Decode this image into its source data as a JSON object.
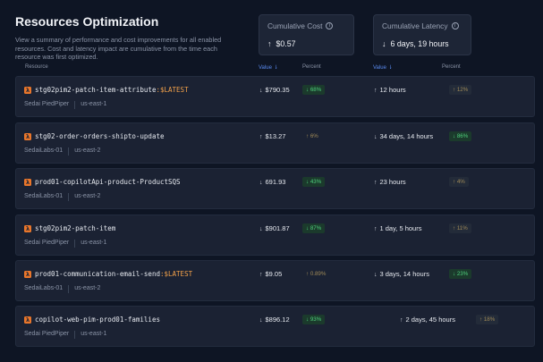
{
  "header": {
    "title": "Resources Optimization",
    "description": "View a summary of performance and cost improvements for all enabled resources. Cost and latency impact are cumulative from the time each resource was first optimized."
  },
  "cards": {
    "cost": {
      "label": "Cumulative Cost",
      "arrow": "↑",
      "value": "$0.57"
    },
    "latency": {
      "label": "Cumulative Latency",
      "arrow": "↓",
      "value": "6 days, 19 hours"
    }
  },
  "columns": {
    "resource": "Resource",
    "cost_value": "Value ⇂",
    "cost_percent": "Percent",
    "latency_value": "Value ⇂",
    "latency_percent": "Percent"
  },
  "rows": [
    {
      "name": "stg02pim2-patch-item-attribute",
      "tag": ":$LATEST",
      "account": "Sedai PiedPiper",
      "region": "us-east-1",
      "cost_arrow": "↓",
      "cost": "$790.35",
      "cost_pct": "↓ 68%",
      "lat_arrow": "↑",
      "latency": "12 hours",
      "lat_pct": "↑ 12%"
    },
    {
      "name": "stg02-order-orders-shipto-update",
      "tag": "",
      "account": "SedaiLabs-01",
      "region": "us-east-2",
      "cost_arrow": "↑",
      "cost": "$13.27",
      "cost_pct": "↑ 6%",
      "lat_arrow": "↓",
      "latency": "34 days, 14 hours",
      "lat_pct": "↓ 86%"
    },
    {
      "name": "prod01-copilotApi-product-ProductSQS",
      "tag": "",
      "account": "SedaiLabs-01",
      "region": "us-east-2",
      "cost_arrow": "↓",
      "cost": "691.93",
      "cost_pct": "↓ 43%",
      "lat_arrow": "↑",
      "latency": "23 hours",
      "lat_pct": "↑ 4%"
    },
    {
      "name": "stg02pim2-patch-item",
      "tag": "",
      "account": "Sedai PiedPiper",
      "region": "us-east-1",
      "cost_arrow": "↓",
      "cost": "$901.87",
      "cost_pct": "↓ 87%",
      "lat_arrow": "↑",
      "latency": "1 day, 5 hours",
      "lat_pct": "↑ 11%"
    },
    {
      "name": "prod01-communication-email-send",
      "tag": ":$LATEST",
      "account": "SedaiLabs-01",
      "region": "us-east-2",
      "cost_arrow": "↑",
      "cost": "$9.05",
      "cost_pct": "↑ 0.89%",
      "lat_arrow": "↓",
      "latency": "3 days, 14 hours",
      "lat_pct": "↓ 23%"
    },
    {
      "name": "copilot-web-pim-prod01-families",
      "tag": "",
      "account": "Sedai PiedPiper",
      "region": "us-east-1",
      "cost_arrow": "↓",
      "cost": "$896.12",
      "cost_pct": "↓ 93%",
      "lat_arrow": "↑",
      "latency": "2 days, 45 hours",
      "lat_pct": "↑ 18%"
    }
  ]
}
